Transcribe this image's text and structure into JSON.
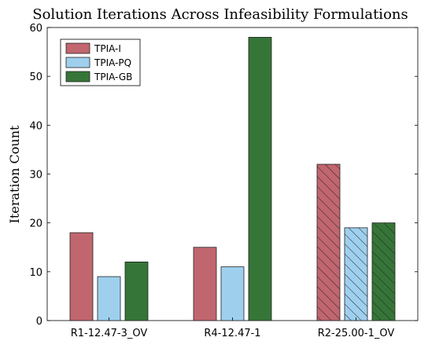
{
  "chart_data": {
    "type": "bar",
    "title": "Solution Iterations Across Infeasibility Formulations",
    "xlabel": "",
    "ylabel": "Iteration Count",
    "ylim": [
      0,
      60
    ],
    "yticks": [
      0,
      10,
      20,
      30,
      40,
      50,
      60
    ],
    "categories": [
      "R1-12.47-3_OV",
      "R4-12.47-1",
      "R2-25.00-1_OV"
    ],
    "hatched_categories": [
      "R2-25.00-1_OV"
    ],
    "grid": false,
    "legend_position": "top-left",
    "series": [
      {
        "name": "TPIA-I",
        "color": "#c1666f",
        "values": [
          18,
          15,
          32
        ]
      },
      {
        "name": "TPIA-PQ",
        "color": "#9ed0ee",
        "values": [
          9,
          11,
          19
        ]
      },
      {
        "name": "TPIA-GB",
        "color": "#367538",
        "values": [
          12,
          58,
          20
        ]
      }
    ]
  }
}
